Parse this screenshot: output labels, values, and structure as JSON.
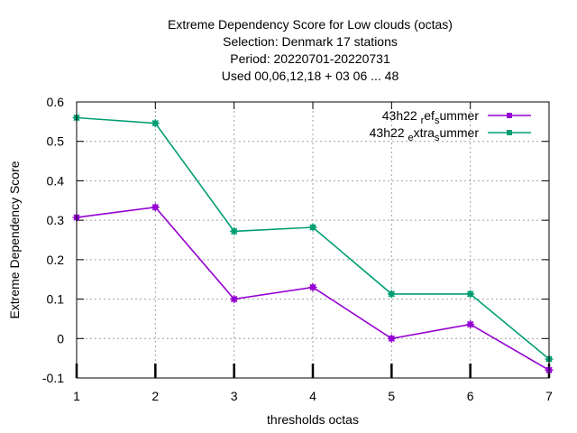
{
  "chart_data": {
    "type": "line",
    "title_lines": [
      "Extreme Dependency Score  for Low clouds (octas)",
      "Selection: Denmark     17 stations",
      "Period: 20220701-20220731",
      "Used  00,06,12,18  + 03 06 ... 48"
    ],
    "xlabel": "thresholds octas",
    "ylabel": "Extreme Dependency Score",
    "x": [
      1,
      2,
      3,
      4,
      5,
      6,
      7
    ],
    "xlim": [
      1,
      7
    ],
    "ylim": [
      -0.1,
      0.6
    ],
    "xticks": [
      "1",
      "2",
      "3",
      "4",
      "5",
      "6",
      "7"
    ],
    "yticks": [
      "-0.1",
      "0",
      "0.1",
      "0.2",
      "0.3",
      "0.4",
      "0.5",
      "0.6"
    ],
    "grid": true,
    "legend_position": "top-right",
    "series": [
      {
        "name": "43h22 ref summer",
        "legend_parts": [
          "43h22 ",
          "r",
          "ef",
          "s",
          "ummer"
        ],
        "color": "#9400d3",
        "values": [
          0.307,
          0.333,
          0.1,
          0.13,
          0.0,
          0.036,
          -0.08
        ]
      },
      {
        "name": "43h22 extra summer",
        "legend_parts": [
          "43h22 ",
          "e",
          "xtra",
          "s",
          "ummer"
        ],
        "color": "#009e73",
        "values": [
          0.56,
          0.546,
          0.272,
          0.282,
          0.113,
          0.113,
          -0.052
        ]
      }
    ]
  }
}
